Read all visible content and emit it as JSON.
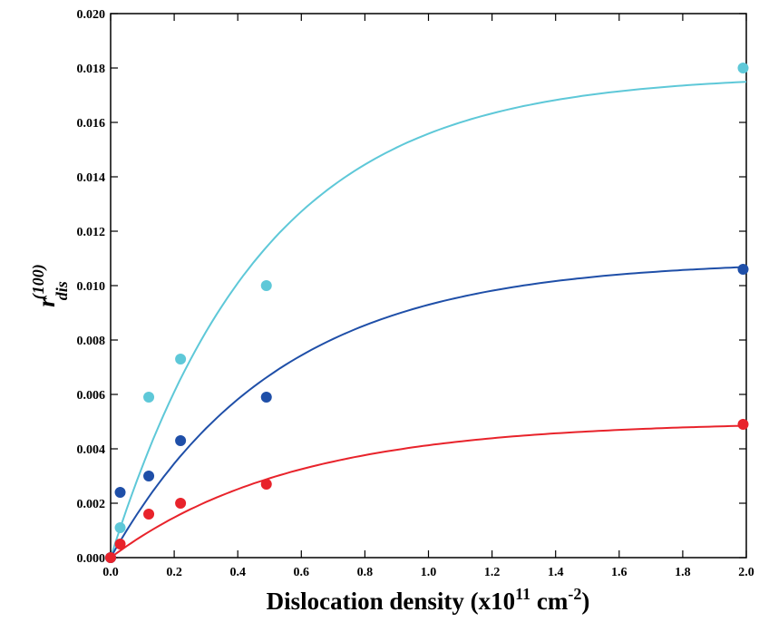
{
  "chart_data": {
    "type": "scatter",
    "xlabel": {
      "main": "Dislocation density (x10",
      "exp": "11",
      "mid": " cm",
      "unit_exp": "-2",
      "close": ")"
    },
    "ylabel": {
      "main": "r",
      "superscript": "(100)",
      "subscript": "dis"
    },
    "xlim": [
      0.0,
      2.0
    ],
    "ylim": [
      0.0,
      0.02
    ],
    "x_ticks": [
      "0.0",
      "0.2",
      "0.4",
      "0.6",
      "0.8",
      "1.0",
      "1.2",
      "1.4",
      "1.6",
      "1.8",
      "2.0"
    ],
    "y_ticks": [
      "0.000",
      "0.002",
      "0.004",
      "0.006",
      "0.008",
      "0.010",
      "0.012",
      "0.014",
      "0.016",
      "0.018",
      "0.020"
    ],
    "grid": false,
    "legend": "none",
    "series": [
      {
        "color": "#5ec8d8",
        "points": [
          [
            0.0,
            0.0
          ],
          [
            0.03,
            0.0011
          ],
          [
            0.12,
            0.0059
          ],
          [
            0.22,
            0.0073
          ],
          [
            0.49,
            0.01
          ],
          [
            1.99,
            0.018
          ]
        ],
        "fit": {
          "amplitude": 0.01776,
          "rate": 2.1
        }
      },
      {
        "color": "#1f4fa8",
        "points": [
          [
            0.0,
            0.0
          ],
          [
            0.03,
            0.0024
          ],
          [
            0.12,
            0.003
          ],
          [
            0.22,
            0.0043
          ],
          [
            0.49,
            0.0059
          ],
          [
            1.99,
            0.0106
          ]
        ],
        "fit": {
          "amplitude": 0.01093,
          "rate": 1.9
        }
      },
      {
        "color": "#e8232b",
        "points": [
          [
            0.0,
            0.0
          ],
          [
            0.03,
            0.0005
          ],
          [
            0.12,
            0.0016
          ],
          [
            0.22,
            0.002
          ],
          [
            0.49,
            0.0027
          ],
          [
            1.99,
            0.0049
          ]
        ],
        "fit": {
          "amplitude": 0.005,
          "rate": 1.75
        }
      }
    ]
  }
}
